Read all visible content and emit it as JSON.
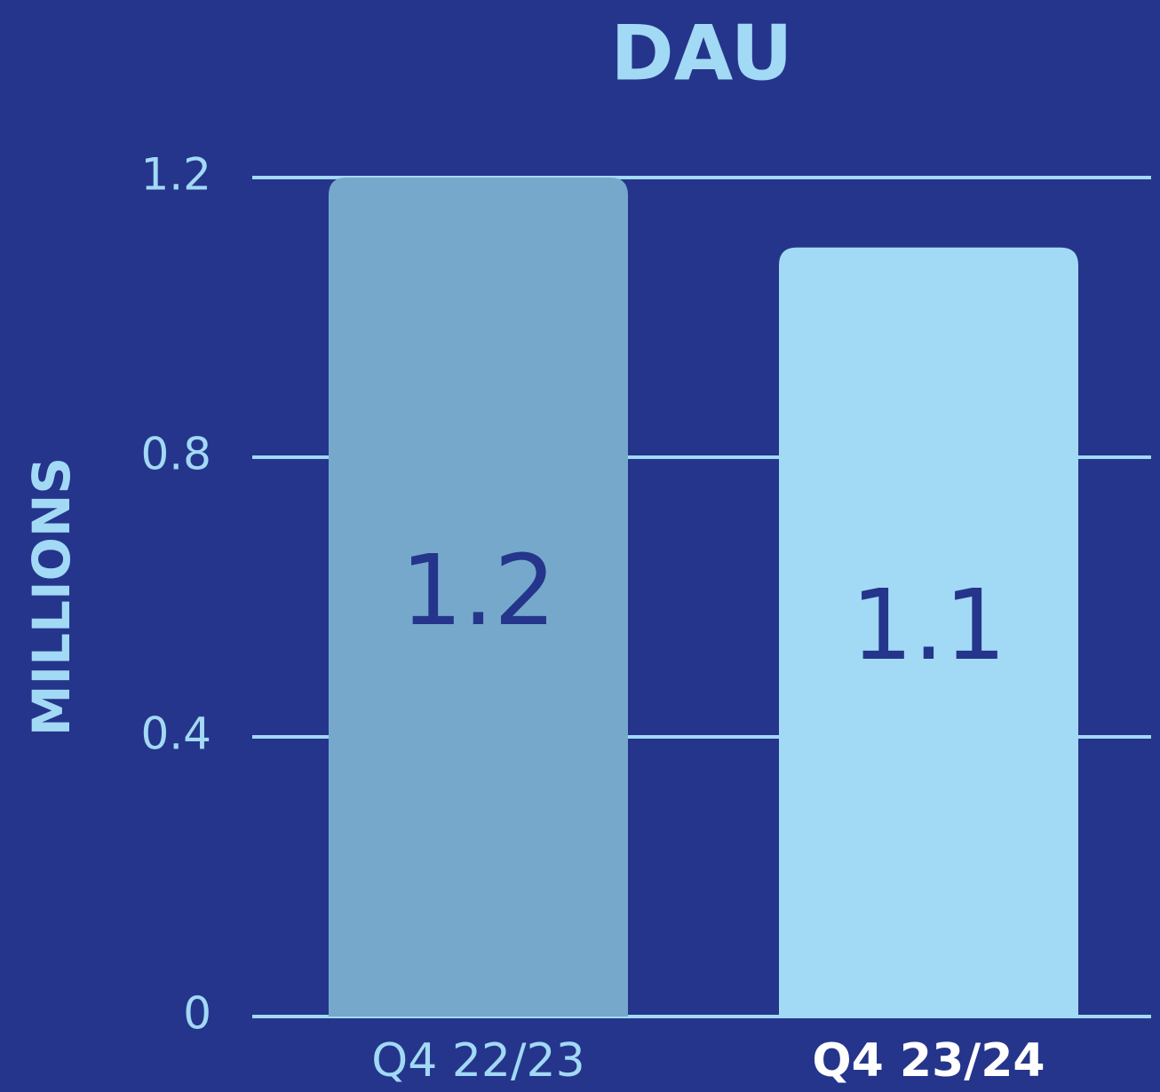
{
  "chart_data": {
    "type": "bar",
    "title": "DAU",
    "y_label": "MILLIONS",
    "categories": [
      "Q4 22/23",
      "Q4 23/24"
    ],
    "values": [
      1.2,
      1.1
    ],
    "colors": [
      "#76a8cb",
      "#a2d9f5"
    ],
    "ylim": [
      0,
      1.2
    ],
    "yticks": [
      0,
      0.4,
      0.8,
      1.2
    ],
    "grid": true
  }
}
